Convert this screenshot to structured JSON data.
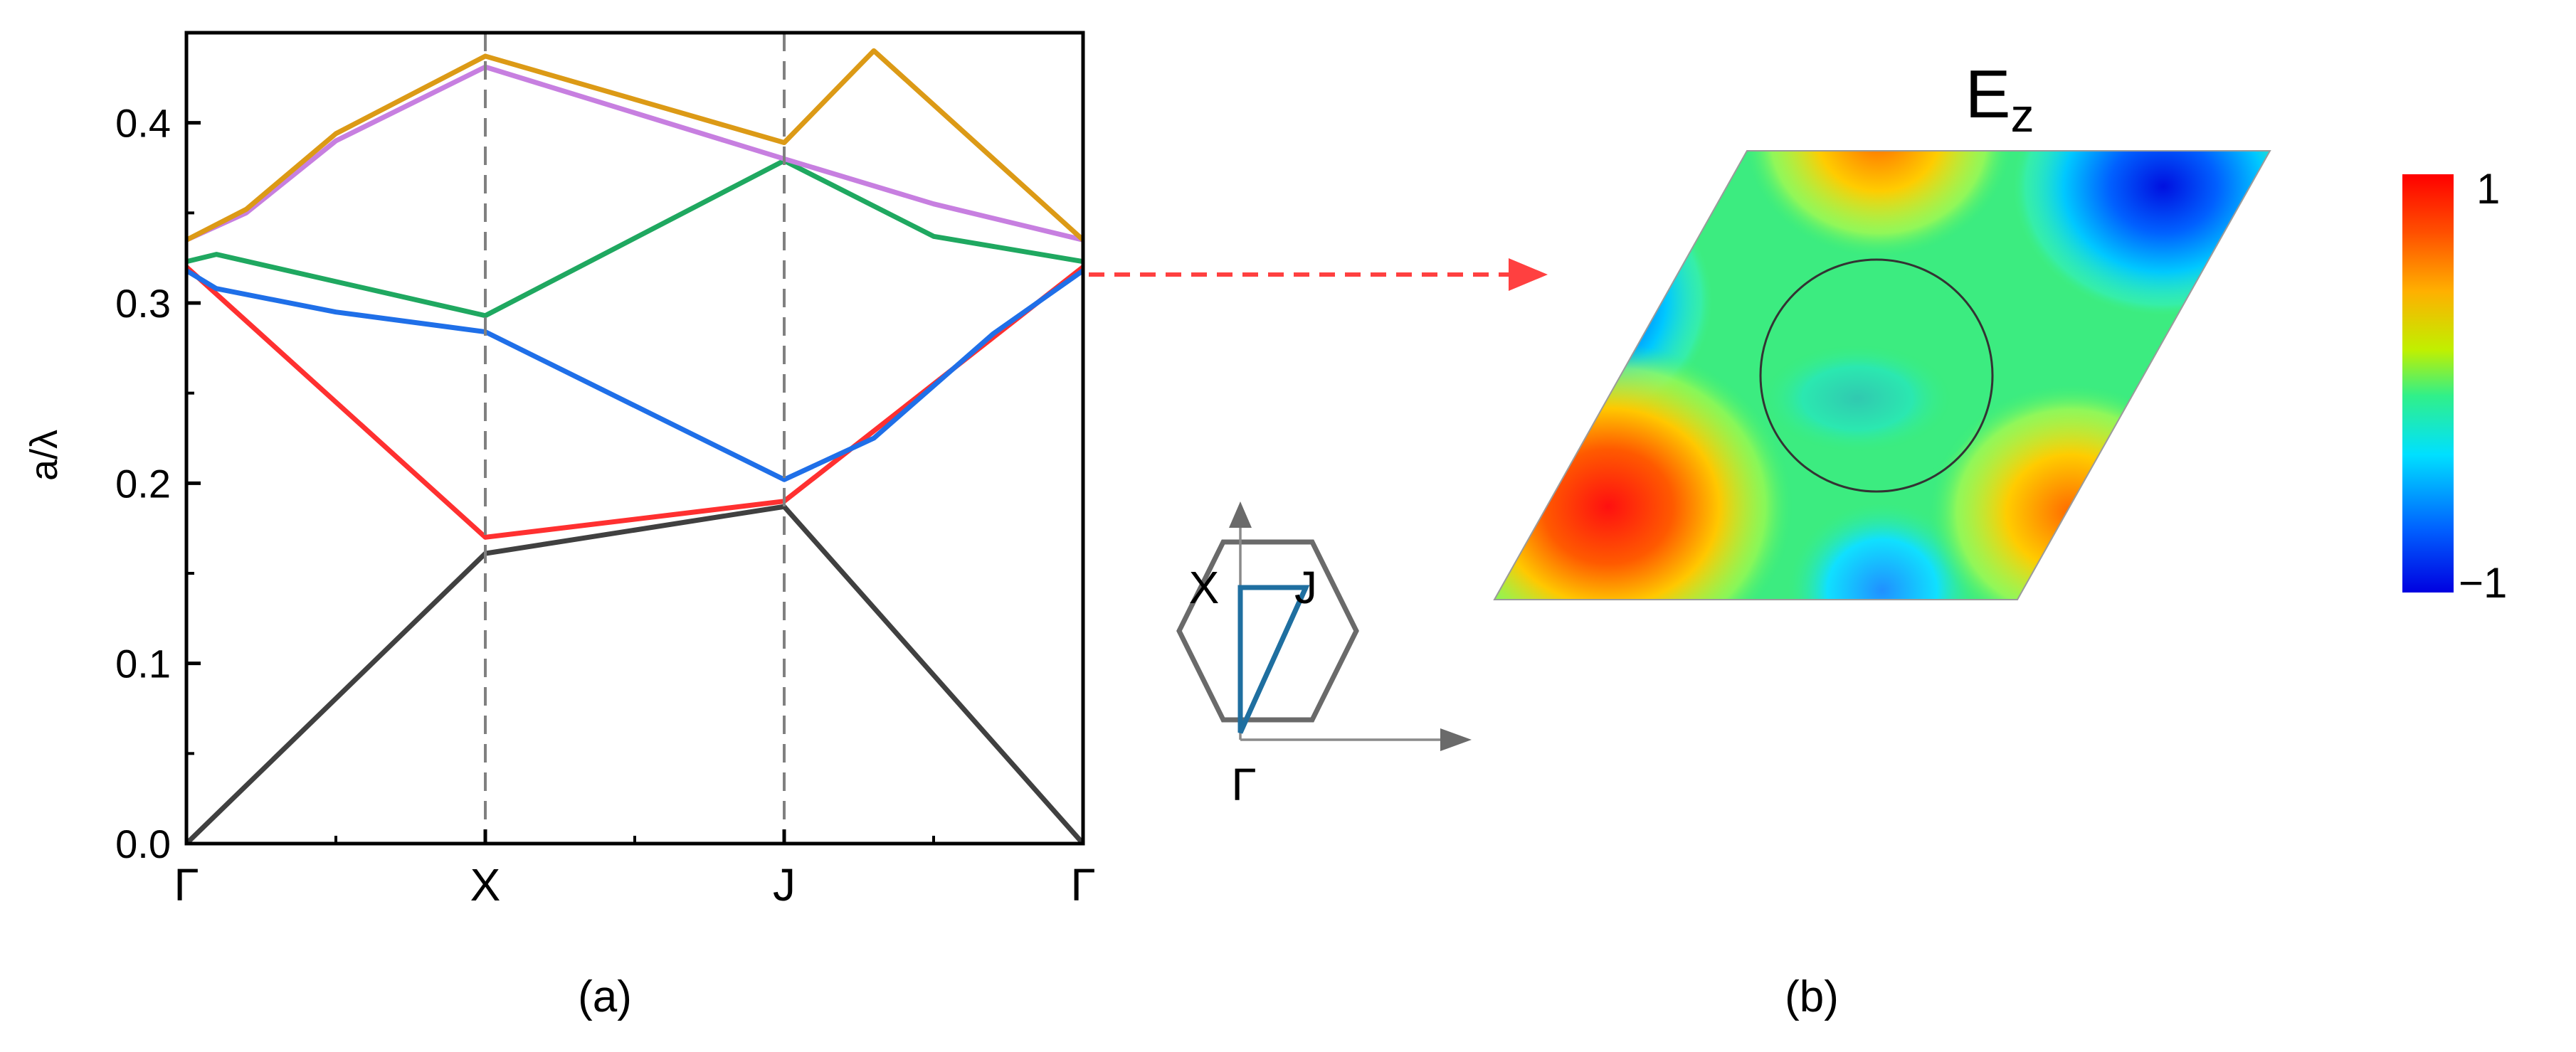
{
  "chart_data": [
    {
      "type": "line",
      "panel_label": "(a)",
      "ylabel": "a/λ",
      "ylim": [
        0,
        0.45
      ],
      "yticks": [
        "0.0",
        "0.1",
        "0.2",
        "0.3",
        "0.4"
      ],
      "x_kpoints": [
        "Γ",
        "X",
        "J",
        "Γ"
      ],
      "grid": false,
      "legend": "none",
      "series": [
        {
          "color": "#404040",
          "x": [
            0,
            1,
            2,
            3
          ],
          "y": [
            0.0,
            0.161,
            0.187,
            0.0
          ]
        },
        {
          "color": "#ff3030",
          "x": [
            0,
            1,
            2,
            3
          ],
          "y": [
            0.32,
            0.17,
            0.19,
            0.32
          ]
        },
        {
          "color": "#1f6fe8",
          "x": [
            0,
            0.1,
            0.5,
            1,
            1.5,
            2,
            2.3,
            2.7,
            3
          ],
          "y": [
            0.318,
            0.308,
            0.295,
            0.284,
            0.243,
            0.202,
            0.225,
            0.283,
            0.318
          ]
        },
        {
          "color": "#1fa860",
          "x": [
            0,
            0.1,
            1,
            2,
            2.5,
            3
          ],
          "y": [
            0.323,
            0.327,
            0.293,
            0.379,
            0.337,
            0.323
          ]
        },
        {
          "color": "#c77fe0",
          "x": [
            0,
            0.2,
            0.5,
            1,
            2,
            2.5,
            3
          ],
          "y": [
            0.335,
            0.35,
            0.39,
            0.431,
            0.38,
            0.355,
            0.335
          ]
        },
        {
          "color": "#dc9a16",
          "x": [
            0,
            0.2,
            0.5,
            1,
            2,
            2.3,
            3
          ],
          "y": [
            0.335,
            0.352,
            0.394,
            0.437,
            0.389,
            0.44,
            0.335
          ]
        }
      ]
    },
    {
      "type": "heatmap",
      "panel_label": "(b)",
      "title": "E",
      "title_subscript": "z",
      "colorbar_max": "1",
      "colorbar_min": "−1"
    }
  ],
  "brillouin_zone": {
    "labels": {
      "x": "X",
      "j": "J",
      "gamma": "Γ"
    }
  },
  "colors": {
    "axis": "#000000",
    "dashed_lines": "#808080",
    "arrow": "#ff4040",
    "hexagon": "#6a6a6a",
    "path_triangle": "#1f6fa0"
  }
}
